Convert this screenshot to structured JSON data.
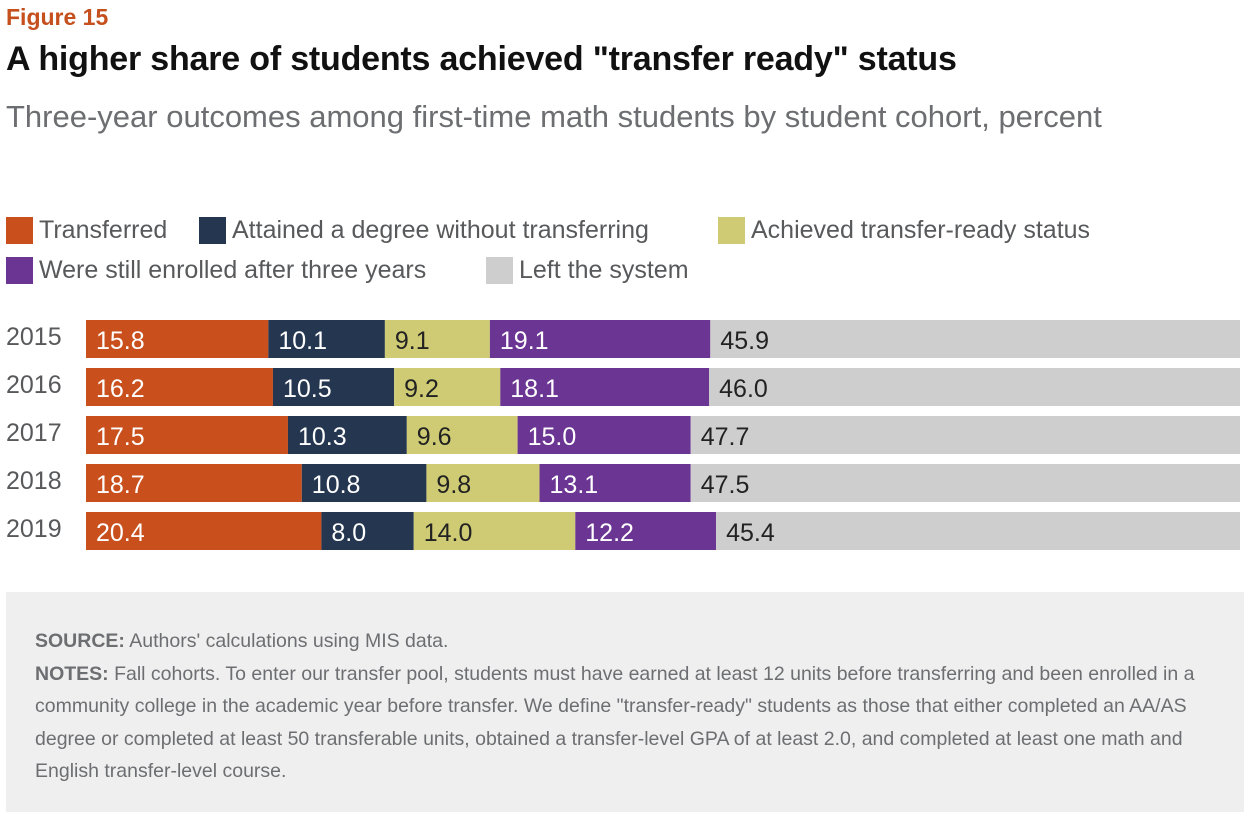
{
  "figure_label": "Figure 15",
  "title": "A higher share of students achieved \"transfer ready\" status",
  "subtitle": "Three-year outcomes among first-time math students by student cohort, percent",
  "source_label": "SOURCE:",
  "source_text": "Authors' calculations using MIS data.",
  "notes_label": "NOTES:",
  "notes_text": "Fall cohorts. To enter our transfer pool, students must have earned at least 12 units before transferring and been enrolled in a community college in the academic year before transfer. We define \"transfer-ready\" students as those that either completed an AA/AS degree or completed at least 50 transferable units, obtained a transfer-level GPA of at least 2.0, and completed at least one math and English transfer-level course.",
  "chart_data": {
    "type": "bar",
    "orientation": "horizontal",
    "stacked": true,
    "categories": [
      "2015",
      "2016",
      "2017",
      "2018",
      "2019"
    ],
    "series": [
      {
        "name": "Transferred",
        "color": "#c9501c",
        "label_color": "#ffffff",
        "values": [
          15.8,
          16.2,
          17.5,
          18.7,
          20.4
        ]
      },
      {
        "name": "Attained a degree without transferring",
        "color": "#253750",
        "label_color": "#ffffff",
        "values": [
          10.1,
          10.5,
          10.3,
          10.8,
          8.0
        ]
      },
      {
        "name": "Achieved transfer-ready status",
        "color": "#cfcb74",
        "label_color": "#222222",
        "values": [
          9.1,
          9.2,
          9.6,
          9.8,
          14.0
        ]
      },
      {
        "name": "Were still enrolled after three years",
        "color": "#6b3593",
        "label_color": "#ffffff",
        "values": [
          19.1,
          18.1,
          15.0,
          13.1,
          12.2
        ]
      },
      {
        "name": "Left the system",
        "color": "#cecece",
        "label_color": "#222222",
        "values": [
          45.9,
          46.0,
          47.7,
          47.5,
          45.4
        ]
      }
    ],
    "xlim": [
      0,
      100
    ],
    "grid": false,
    "legend_position": "top"
  }
}
